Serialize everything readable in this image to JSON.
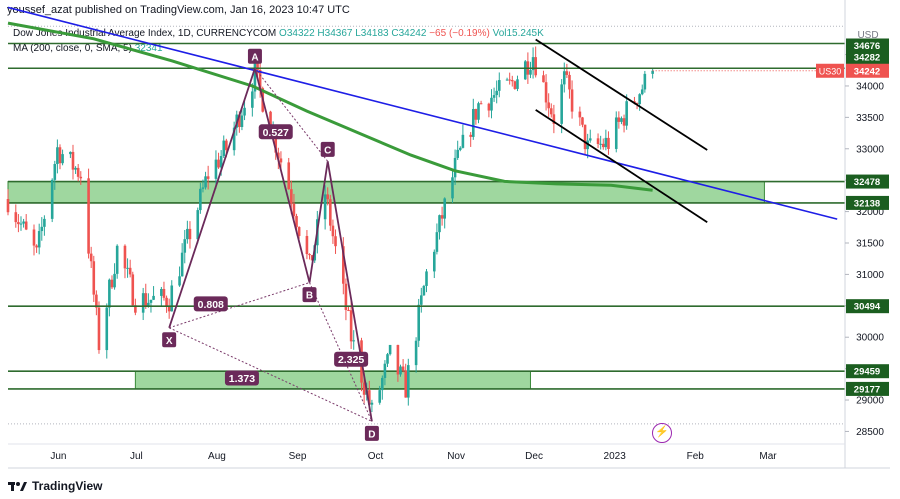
{
  "header": {
    "publisher_text": "youssef_azat published on TradingView.com, Jan 16, 2023 10:47 UTC"
  },
  "legend": {
    "symbol": "Dow Jones Industrial Average Index, 1D, CURRENCYCOM",
    "open": "O34322",
    "high": "H34367",
    "low": "L34183",
    "close": "C34242",
    "change": "−65 (−0.19%)",
    "volume": "Vol15.245K",
    "ma_label": "MA (200, close, 0, SMA, 5)",
    "ma_value": "32341"
  },
  "footer": {
    "brand": "TradingView"
  },
  "chart_data": {
    "type": "candlestick",
    "currency": "USD",
    "x_ticks": [
      "Jun",
      "Jul",
      "Aug",
      "Sep",
      "Oct",
      "Nov",
      "Dec",
      "2023",
      "Feb",
      "Mar"
    ],
    "y_ticks": [
      28500,
      29000,
      29500,
      30000,
      30500,
      31000,
      31500,
      32000,
      32500,
      33000,
      33500,
      34000,
      34500
    ],
    "ylim": [
      28300,
      35050
    ],
    "current_price": {
      "label": "US30",
      "value": 34242,
      "color": "#ef5350"
    },
    "level_labels": [
      34676,
      34282,
      32478,
      32138,
      30494,
      29459,
      29177
    ],
    "horizontal_levels": [
      34676,
      34282,
      30494
    ],
    "zones": [
      {
        "from": 32138,
        "to": 32478,
        "start": "2022-05-13",
        "end": "2023-02-28"
      },
      {
        "from": 29177,
        "to": 29459,
        "start": "2022-07-01",
        "end": "2022-11-30"
      }
    ],
    "harmonic_points": [
      {
        "label": "X",
        "date": "2022-07-14",
        "price": 30150
      },
      {
        "label": "A",
        "date": "2022-08-16",
        "price": 34281
      },
      {
        "label": "B",
        "date": "2022-09-06",
        "price": 30870
      },
      {
        "label": "C",
        "date": "2022-09-13",
        "price": 32800
      },
      {
        "label": "D",
        "date": "2022-09-30",
        "price": 28660
      }
    ],
    "ratios": [
      {
        "label": "0.527",
        "date": "2022-08-24",
        "price": 33270
      },
      {
        "label": "0.808",
        "date": "2022-07-30",
        "price": 30530
      },
      {
        "label": "2.325",
        "date": "2022-09-22",
        "price": 29650
      },
      {
        "label": "1.373",
        "date": "2022-08-11",
        "price": 29350
      }
    ],
    "trendline": {
      "start": [
        "2022-05-13",
        35250
      ],
      "end": [
        "2023-03-28",
        31880
      ],
      "color": "#1e1ee6"
    },
    "channel": [
      {
        "start": [
          "2022-12-02",
          34740
        ],
        "end": [
          "2023-02-06",
          32980
        ]
      },
      {
        "start": [
          "2022-12-02",
          33620
        ],
        "end": [
          "2023-02-06",
          31830
        ]
      }
    ],
    "ma200": [
      [
        "2022-05-13",
        35000
      ],
      [
        "2022-06-15",
        34750
      ],
      [
        "2022-07-15",
        34400
      ],
      [
        "2022-08-15",
        34000
      ],
      [
        "2022-09-05",
        33600
      ],
      [
        "2022-09-25",
        33250
      ],
      [
        "2022-10-15",
        32900
      ],
      [
        "2022-11-01",
        32650
      ],
      [
        "2022-11-20",
        32480
      ],
      [
        "2022-12-10",
        32440
      ],
      [
        "2022-12-31",
        32420
      ],
      [
        "2023-01-16",
        32341
      ]
    ],
    "price_path": [
      [
        "2022-05-13",
        32200
      ],
      [
        "2022-05-24",
        31300
      ],
      [
        "2022-06-01",
        33000
      ],
      [
        "2022-06-10",
        32600
      ],
      [
        "2022-06-17",
        29900
      ],
      [
        "2022-06-24",
        31400
      ],
      [
        "2022-07-01",
        30600
      ],
      [
        "2022-07-14",
        30600
      ],
      [
        "2022-07-29",
        32600
      ],
      [
        "2022-08-05",
        33000
      ],
      [
        "2022-08-16",
        34200
      ],
      [
        "2022-08-29",
        32400
      ],
      [
        "2022-09-06",
        31100
      ],
      [
        "2022-09-12",
        32300
      ],
      [
        "2022-09-22",
        30000
      ],
      [
        "2022-09-30",
        28800
      ],
      [
        "2022-10-07",
        29700
      ],
      [
        "2022-10-13",
        29200
      ],
      [
        "2022-10-21",
        31000
      ],
      [
        "2022-11-01",
        32700
      ],
      [
        "2022-11-10",
        33700
      ],
      [
        "2022-11-22",
        34000
      ],
      [
        "2022-12-01",
        34500
      ],
      [
        "2022-12-09",
        33500
      ],
      [
        "2022-12-13",
        34100
      ],
      [
        "2022-12-22",
        33000
      ],
      [
        "2022-12-30",
        33100
      ],
      [
        "2023-01-06",
        33600
      ],
      [
        "2023-01-16",
        34242
      ]
    ]
  }
}
